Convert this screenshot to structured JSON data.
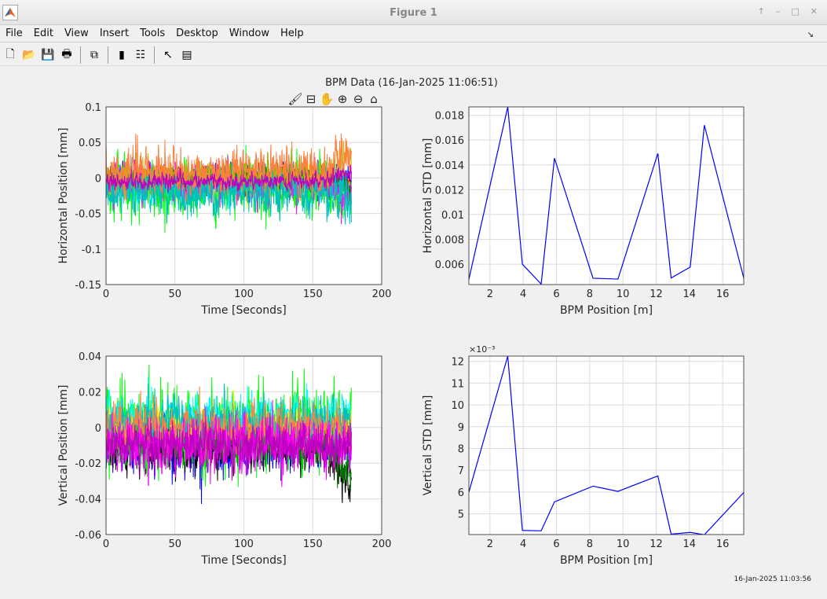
{
  "window": {
    "title": "Figure 1",
    "controls": [
      "↑",
      "–",
      "□",
      "✕"
    ]
  },
  "menu": [
    "File",
    "Edit",
    "View",
    "Insert",
    "Tools",
    "Desktop",
    "Window",
    "Help"
  ],
  "toolbar": [
    {
      "icon": "new-figure-icon",
      "glyph": "🗋"
    },
    {
      "icon": "open-icon",
      "glyph": "📂"
    },
    {
      "icon": "save-icon",
      "glyph": "💾"
    },
    {
      "icon": "print-icon",
      "glyph": "🖶"
    },
    {
      "sep": true
    },
    {
      "icon": "link-icon",
      "glyph": "⧉"
    },
    {
      "sep": true
    },
    {
      "icon": "colorbar-icon",
      "glyph": "▮"
    },
    {
      "icon": "legend-icon",
      "glyph": "☷"
    },
    {
      "sep": true
    },
    {
      "icon": "pointer-icon",
      "glyph": "↖"
    },
    {
      "icon": "property-inspector-icon",
      "glyph": "▤"
    }
  ],
  "figure": {
    "suptitle": "BPM Data (16-Jan-2025 11:06:51)",
    "axes_toolbar": [
      {
        "icon": "brush-icon",
        "glyph": "🖌"
      },
      {
        "icon": "data-tip-icon",
        "glyph": "⊟"
      },
      {
        "icon": "pan-icon",
        "glyph": "✋"
      },
      {
        "icon": "zoom-in-icon",
        "glyph": "⊕"
      },
      {
        "icon": "zoom-out-icon",
        "glyph": "⊖"
      },
      {
        "icon": "home-icon",
        "glyph": "⌂"
      }
    ],
    "timestamp": "16-Jan-2025 11:03:56"
  },
  "chart_data": [
    {
      "type": "line",
      "xlabel": "Time [Seconds]",
      "ylabel": "Horizontal Position [mm]",
      "xlim": [
        0,
        200
      ],
      "ylim": [
        -0.15,
        0.1
      ],
      "xticks": [
        "0",
        "50",
        "100",
        "150",
        "200"
      ],
      "yticks": [
        "0.1",
        "0.05",
        "0",
        "-0.05",
        "-0.1",
        "-0.15"
      ],
      "grid": true,
      "x_extent": [
        0,
        178
      ],
      "series": [
        {
          "color": "#0000ff",
          "mean": 0.0,
          "std": 0.008
        },
        {
          "color": "#000000",
          "mean": -0.005,
          "std": 0.008,
          "end_drift": -0.02
        },
        {
          "color": "#ff0000",
          "mean": 0.0,
          "std": 0.008,
          "end_drift": -0.01
        },
        {
          "color": "#ffff00",
          "mean": -0.01,
          "std": 0.01,
          "end_drift": -0.02
        },
        {
          "color": "#00ff00",
          "mean": -0.015,
          "std": 0.018,
          "end_drift": -0.02
        },
        {
          "color": "#00ffff",
          "mean": -0.01,
          "std": 0.01,
          "end_drift": -0.01
        },
        {
          "color": "#ff00ff",
          "mean": -0.005,
          "std": 0.012,
          "end_drift": -0.02
        },
        {
          "color": "#008000",
          "mean": 0.0,
          "std": 0.008,
          "end_drift": -0.005
        },
        {
          "color": "#bbbb00",
          "mean": 0.0,
          "std": 0.01,
          "end_drift": 0.03
        },
        {
          "color": "#00bfbf",
          "mean": -0.02,
          "std": 0.015,
          "end_drift": -0.015
        },
        {
          "color": "#ff7f3f",
          "mean": 0.01,
          "std": 0.014,
          "end_drift": 0.025
        },
        {
          "color": "#bf00bf",
          "mean": -0.005,
          "std": 0.005,
          "end_drift": 0.015
        }
      ]
    },
    {
      "type": "line",
      "xlabel": "BPM Position [m]",
      "ylabel": "Horizontal STD [mm]",
      "xlim": [
        0.73,
        17.27
      ],
      "ylim": [
        0.00436,
        0.01867
      ],
      "xticks": [
        2,
        4,
        6,
        8,
        10,
        12,
        14,
        16
      ],
      "yticks": [
        "0.006",
        "0.008",
        "0.01",
        "0.012",
        "0.014",
        "0.016",
        "0.018"
      ],
      "grid": true,
      "color": "#0000ff",
      "x": [
        0.73,
        3.07,
        3.95,
        5.08,
        5.88,
        8.2,
        9.7,
        12.1,
        12.9,
        14.05,
        14.9,
        17.27
      ],
      "y": [
        0.00478,
        0.01867,
        0.006,
        0.0044,
        0.01454,
        0.00487,
        0.0048,
        0.01492,
        0.00489,
        0.00577,
        0.0172,
        0.00489
      ]
    },
    {
      "type": "line",
      "xlabel": "Time [Seconds]",
      "ylabel": "Vertical Position [mm]",
      "xlim": [
        0,
        200
      ],
      "ylim": [
        -0.06,
        0.04
      ],
      "xticks": [
        "0",
        "50",
        "100",
        "150",
        "200"
      ],
      "yticks": [
        "0.04",
        "0.02",
        "0",
        "-0.02",
        "-0.04",
        "-0.06"
      ],
      "grid": true,
      "x_extent": [
        0,
        178
      ],
      "series": [
        {
          "color": "#0000ff",
          "mean": -0.01,
          "std": 0.007
        },
        {
          "color": "#000000",
          "mean": -0.012,
          "std": 0.006,
          "end_drift": -0.025
        },
        {
          "color": "#00ff00",
          "mean": 0.0,
          "std": 0.01
        },
        {
          "color": "#00ffff",
          "mean": 0.005,
          "std": 0.006
        },
        {
          "color": "#ffff00",
          "mean": 0.0,
          "std": 0.005
        },
        {
          "color": "#008000",
          "mean": -0.008,
          "std": 0.005,
          "end_drift": -0.02
        },
        {
          "color": "#00bfbf",
          "mean": 0.003,
          "std": 0.006
        },
        {
          "color": "#ff7f3f",
          "mean": 0.0,
          "std": 0.006
        },
        {
          "color": "#ff00ff",
          "mean": -0.01,
          "std": 0.007
        },
        {
          "color": "#bf00bf",
          "mean": -0.01,
          "std": 0.005
        }
      ]
    },
    {
      "type": "line",
      "xlabel": "BPM Position [m]",
      "ylabel": "Vertical STD [mm]",
      "xlim": [
        0.73,
        17.27
      ],
      "ylim": [
        4.05,
        12.24
      ],
      "exponent": "×10⁻³",
      "xticks": [
        2,
        4,
        6,
        8,
        10,
        12,
        14,
        16
      ],
      "yticks": [
        "5",
        "6",
        "7",
        "8",
        "9",
        "10",
        "11",
        "12"
      ],
      "grid": true,
      "color": "#0000ff",
      "x": [
        0.73,
        3.07,
        3.95,
        5.08,
        5.88,
        8.2,
        9.7,
        12.1,
        12.9,
        14.05,
        14.9,
        17.27
      ],
      "y": [
        6.0,
        12.24,
        4.24,
        4.22,
        5.55,
        6.27,
        6.03,
        6.74,
        4.07,
        4.15,
        4.04,
        5.98
      ]
    }
  ]
}
